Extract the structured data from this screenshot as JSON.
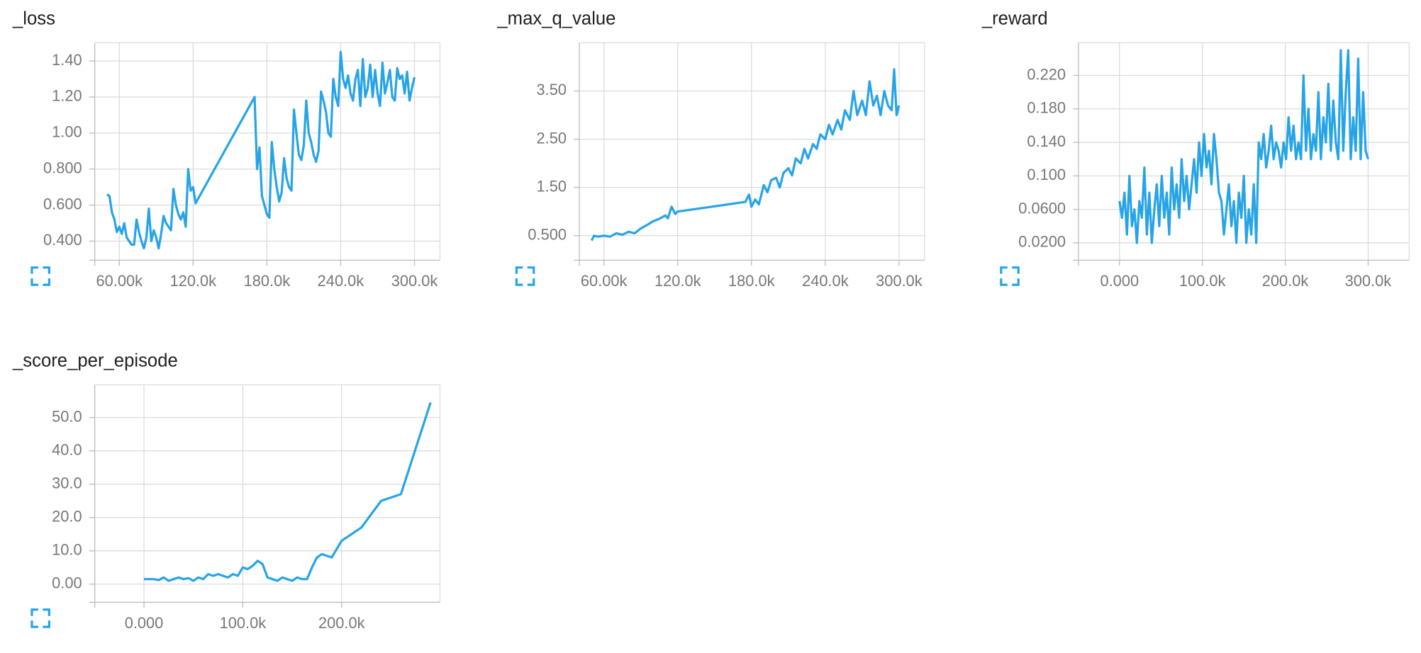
{
  "chart_data": [
    {
      "type": "line",
      "title": "_loss",
      "color": "#27a4e6",
      "grid": true,
      "xlim": [
        40000,
        320740
      ],
      "ylim": [
        0.294,
        1.501
      ],
      "xticks": [
        {
          "value": 60000,
          "label": "60.00k"
        },
        {
          "value": 120000,
          "label": "120.0k"
        },
        {
          "value": 180000,
          "label": "180.0k"
        },
        {
          "value": 240000,
          "label": "240.0k"
        },
        {
          "value": 300000,
          "label": "300.0k"
        }
      ],
      "yticks": [
        {
          "value": 0.4,
          "label": "0.400"
        },
        {
          "value": 0.6,
          "label": "0.600"
        },
        {
          "value": 0.8,
          "label": "0.800"
        },
        {
          "value": 1,
          "label": "1.00"
        },
        {
          "value": 1.2,
          "label": "1.20"
        },
        {
          "value": 1.4,
          "label": "1.40"
        }
      ],
      "x": [
        50000,
        52000,
        54000,
        56000,
        58000,
        60000,
        62000,
        64000,
        66000,
        68000,
        70000,
        72000,
        74000,
        76000,
        78000,
        80000,
        82000,
        84000,
        86000,
        88000,
        90000,
        92000,
        94000,
        96000,
        98000,
        100000,
        102000,
        104000,
        106000,
        108000,
        110000,
        112000,
        114000,
        116000,
        118000,
        120000,
        122000,
        170000,
        172000,
        174000,
        176000,
        178000,
        180000,
        182000,
        184000,
        186000,
        188000,
        190000,
        192000,
        194000,
        196000,
        198000,
        200000,
        202000,
        204000,
        206000,
        208000,
        210000,
        212000,
        214000,
        216000,
        218000,
        220000,
        222000,
        224000,
        226000,
        228000,
        230000,
        232000,
        234000,
        236000,
        238000,
        240000,
        242000,
        244000,
        246000,
        248000,
        250000,
        252000,
        254000,
        256000,
        258000,
        260000,
        262000,
        264000,
        266000,
        268000,
        270000,
        272000,
        274000,
        276000,
        278000,
        280000,
        282000,
        284000,
        286000,
        288000,
        290000,
        292000,
        294000,
        296000,
        298000,
        300000
      ],
      "values": [
        0.66,
        0.65,
        0.56,
        0.52,
        0.45,
        0.48,
        0.44,
        0.5,
        0.42,
        0.4,
        0.38,
        0.38,
        0.52,
        0.45,
        0.4,
        0.36,
        0.42,
        0.58,
        0.4,
        0.46,
        0.42,
        0.36,
        0.44,
        0.54,
        0.5,
        0.48,
        0.46,
        0.69,
        0.6,
        0.55,
        0.52,
        0.56,
        0.48,
        0.8,
        0.68,
        0.7,
        0.61,
        1.2,
        0.8,
        0.92,
        0.65,
        0.6,
        0.55,
        0.53,
        0.95,
        0.8,
        0.7,
        0.62,
        0.67,
        0.86,
        0.75,
        0.7,
        0.68,
        1.13,
        1.0,
        0.88,
        0.85,
        0.93,
        1.18,
        1.0,
        0.95,
        0.88,
        0.84,
        0.9,
        1.23,
        1.18,
        1.12,
        1.0,
        0.98,
        1.3,
        1.2,
        1.15,
        1.45,
        1.3,
        1.25,
        1.32,
        1.22,
        1.18,
        1.3,
        1.35,
        1.15,
        1.41,
        1.2,
        1.25,
        1.38,
        1.2,
        1.35,
        1.22,
        1.15,
        1.39,
        1.22,
        1.28,
        1.35,
        1.2,
        1.18,
        1.36,
        1.3,
        1.32,
        1.22,
        1.34,
        1.18,
        1.25,
        1.31
      ]
    },
    {
      "type": "line",
      "title": "_max_q_value",
      "color": "#27a4e6",
      "grid": true,
      "xlim": [
        40000,
        320740
      ],
      "ylim": [
        -0.009,
        4.5
      ],
      "xticks": [
        {
          "value": 60000,
          "label": "60.00k"
        },
        {
          "value": 120000,
          "label": "120.0k"
        },
        {
          "value": 180000,
          "label": "180.0k"
        },
        {
          "value": 240000,
          "label": "240.0k"
        },
        {
          "value": 300000,
          "label": "300.0k"
        }
      ],
      "yticks": [
        {
          "value": 0.5,
          "label": "0.500"
        },
        {
          "value": 1.5,
          "label": "1.50"
        },
        {
          "value": 2.5,
          "label": "2.50"
        },
        {
          "value": 3.5,
          "label": "3.50"
        }
      ],
      "x": [
        50000,
        52000,
        55000,
        60000,
        65000,
        70000,
        75000,
        80000,
        85000,
        90000,
        95000,
        100000,
        105000,
        110000,
        112000,
        115000,
        118000,
        120000,
        175000,
        178000,
        180000,
        183000,
        186000,
        190000,
        193000,
        196000,
        200000,
        203000,
        206000,
        210000,
        213000,
        216000,
        220000,
        223000,
        226000,
        230000,
        233000,
        236000,
        240000,
        243000,
        246000,
        250000,
        253000,
        256000,
        260000,
        263000,
        266000,
        270000,
        273000,
        276000,
        279000,
        282000,
        285000,
        288000,
        291000,
        294000,
        296000,
        298000,
        300000
      ],
      "values": [
        0.4,
        0.5,
        0.48,
        0.5,
        0.48,
        0.55,
        0.52,
        0.58,
        0.55,
        0.65,
        0.72,
        0.8,
        0.85,
        0.92,
        0.86,
        1.1,
        0.95,
        1.0,
        1.2,
        1.35,
        1.1,
        1.25,
        1.15,
        1.55,
        1.4,
        1.65,
        1.7,
        1.5,
        1.8,
        1.9,
        1.75,
        2.1,
        2.0,
        2.3,
        2.1,
        2.4,
        2.3,
        2.6,
        2.5,
        2.8,
        2.6,
        2.9,
        2.7,
        3.1,
        2.9,
        3.5,
        3.0,
        3.3,
        3.0,
        3.7,
        3.2,
        3.4,
        3.0,
        3.5,
        3.2,
        3.1,
        3.95,
        3.0,
        3.2
      ]
    },
    {
      "type": "line",
      "title": "_reward",
      "color": "#27a4e6",
      "grid": true,
      "xlim": [
        -49450,
        349500
      ],
      "ylim": [
        -0.0007,
        0.259
      ],
      "xticks": [
        {
          "value": 0,
          "label": "0.000"
        },
        {
          "value": 100000,
          "label": "100.0k"
        },
        {
          "value": 200000,
          "label": "200.0k"
        },
        {
          "value": 300000,
          "label": "300.0k"
        }
      ],
      "yticks": [
        {
          "value": 0.02,
          "label": "0.0200"
        },
        {
          "value": 0.06,
          "label": "0.0600"
        },
        {
          "value": 0.1,
          "label": "0.100"
        },
        {
          "value": 0.14,
          "label": "0.140"
        },
        {
          "value": 0.18,
          "label": "0.180"
        },
        {
          "value": 0.22,
          "label": "0.220"
        }
      ],
      "x": [
        0,
        3000,
        6000,
        9000,
        12000,
        15000,
        18000,
        21000,
        24000,
        27000,
        30000,
        33000,
        36000,
        39000,
        42000,
        45000,
        48000,
        51000,
        54000,
        57000,
        60000,
        63000,
        66000,
        69000,
        72000,
        75000,
        78000,
        81000,
        84000,
        87000,
        90000,
        93000,
        96000,
        99000,
        102000,
        105000,
        108000,
        111000,
        114000,
        117000,
        120000,
        123000,
        126000,
        129000,
        132000,
        135000,
        138000,
        141000,
        144000,
        147000,
        150000,
        153000,
        156000,
        159000,
        162000,
        165000,
        168000,
        171000,
        174000,
        177000,
        180000,
        183000,
        186000,
        189000,
        192000,
        195000,
        198000,
        201000,
        204000,
        207000,
        210000,
        213000,
        216000,
        219000,
        222000,
        225000,
        228000,
        231000,
        234000,
        237000,
        240000,
        243000,
        246000,
        249000,
        252000,
        255000,
        258000,
        261000,
        264000,
        267000,
        270000,
        273000,
        276000,
        279000,
        282000,
        285000,
        288000,
        291000,
        294000,
        297000,
        300000
      ],
      "values": [
        0.07,
        0.05,
        0.08,
        0.03,
        0.1,
        0.04,
        0.06,
        0.02,
        0.07,
        0.05,
        0.11,
        0.03,
        0.08,
        0.02,
        0.06,
        0.09,
        0.04,
        0.1,
        0.05,
        0.08,
        0.03,
        0.11,
        0.06,
        0.09,
        0.05,
        0.12,
        0.07,
        0.1,
        0.06,
        0.09,
        0.12,
        0.08,
        0.14,
        0.1,
        0.15,
        0.11,
        0.13,
        0.09,
        0.15,
        0.12,
        0.08,
        0.07,
        0.03,
        0.06,
        0.09,
        0.04,
        0.07,
        0.02,
        0.08,
        0.05,
        0.1,
        0.02,
        0.06,
        0.03,
        0.09,
        0.02,
        0.14,
        0.12,
        0.15,
        0.11,
        0.13,
        0.16,
        0.12,
        0.14,
        0.13,
        0.11,
        0.14,
        0.12,
        0.17,
        0.13,
        0.16,
        0.12,
        0.14,
        0.12,
        0.22,
        0.13,
        0.18,
        0.12,
        0.15,
        0.13,
        0.2,
        0.12,
        0.17,
        0.14,
        0.21,
        0.13,
        0.19,
        0.14,
        0.12,
        0.25,
        0.13,
        0.2,
        0.25,
        0.12,
        0.17,
        0.13,
        0.24,
        0.12,
        0.2,
        0.13,
        0.12
      ]
    },
    {
      "type": "line",
      "title": "_score_per_episode",
      "color": "#27a4e6",
      "grid": true,
      "xlim": [
        -49800,
        299500
      ],
      "ylim": [
        -5.46,
        59.8
      ],
      "xticks": [
        {
          "value": 0,
          "label": "0.000"
        },
        {
          "value": 100000,
          "label": "100.0k"
        },
        {
          "value": 200000,
          "label": "200.0k"
        }
      ],
      "yticks": [
        {
          "value": 0,
          "label": "0.00"
        },
        {
          "value": 10,
          "label": "10.0"
        },
        {
          "value": 20,
          "label": "20.0"
        },
        {
          "value": 30,
          "label": "30.0"
        },
        {
          "value": 40,
          "label": "40.0"
        },
        {
          "value": 50,
          "label": "50.0"
        }
      ],
      "x": [
        0,
        10000,
        15000,
        20000,
        25000,
        30000,
        35000,
        40000,
        45000,
        50000,
        55000,
        60000,
        65000,
        70000,
        75000,
        80000,
        85000,
        90000,
        95000,
        100000,
        105000,
        110000,
        115000,
        120000,
        125000,
        130000,
        135000,
        140000,
        145000,
        150000,
        155000,
        160000,
        165000,
        170000,
        175000,
        180000,
        185000,
        190000,
        200000,
        220000,
        240000,
        260000,
        290000
      ],
      "values": [
        1.5,
        1.5,
        1.2,
        2,
        1,
        1.5,
        2,
        1.5,
        1.8,
        1,
        2,
        1.5,
        3,
        2.5,
        3,
        2.5,
        2,
        3,
        2.5,
        5,
        4.5,
        5.5,
        7,
        6,
        2,
        1.5,
        1,
        2,
        1.5,
        1,
        2,
        1.5,
        1.5,
        5,
        8,
        9,
        8.5,
        8,
        13,
        17,
        25,
        27,
        54.5
      ]
    }
  ]
}
